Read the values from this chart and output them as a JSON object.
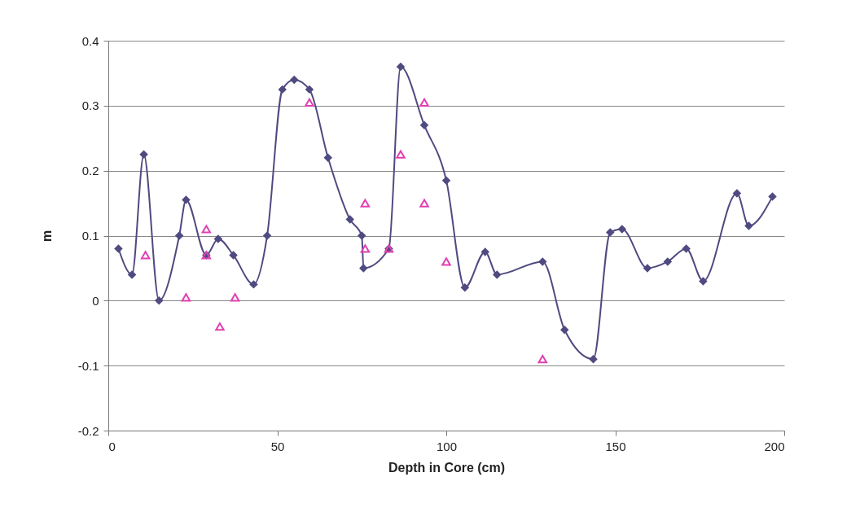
{
  "chart_data": {
    "type": "line",
    "xlabel": "Depth in Core (cm)",
    "ylabel": "m",
    "xlim": [
      0,
      200
    ],
    "xticks": [
      0,
      50,
      100,
      150,
      200
    ],
    "ylim": [
      -0.2,
      0.4
    ],
    "yticks": [
      -0.2,
      -0.1,
      0,
      0.1,
      0.2,
      0.3,
      0.4
    ],
    "grid": "y",
    "legend": false,
    "line_style": "solid",
    "series": [
      {
        "type": "line",
        "marker": "diamond",
        "color": "#4f4a80",
        "x": [
          3,
          7,
          10.5,
          15,
          21,
          23,
          29,
          32.5,
          37,
          43,
          47,
          51.5,
          55,
          59.5,
          65,
          71.5,
          75,
          75.5,
          83,
          86.5,
          93.5,
          100,
          105.5,
          111.5,
          115,
          128.5,
          135,
          143.5,
          148.5,
          152,
          159.5,
          165.5,
          171,
          176,
          186,
          189.5,
          196.5
        ],
        "values": [
          0.08,
          0.04,
          0.225,
          0,
          0.1,
          0.155,
          0.07,
          0.095,
          0.07,
          0.025,
          0.1,
          0.325,
          0.34,
          0.325,
          0.22,
          0.125,
          0.1,
          0.05,
          0.08,
          0.36,
          0.27,
          0.185,
          0.02,
          0.075,
          0.04,
          0.06,
          -0.045,
          -0.09,
          0.105,
          0.11,
          0.05,
          0.06,
          0.08,
          0.03,
          0.165,
          0.115,
          0.16
        ]
      },
      {
        "type": "scatter",
        "marker": "triangle",
        "color": "#e040b0",
        "x": [
          11,
          23,
          29,
          29,
          33,
          37.5,
          59.5,
          76,
          76,
          83,
          86.5,
          93.5,
          93.5,
          100,
          128.5
        ],
        "values": [
          0.07,
          0.005,
          0.11,
          0.07,
          -0.04,
          0.005,
          0.305,
          0.15,
          0.08,
          0.08,
          0.225,
          0.305,
          0.15,
          0.06,
          -0.09
        ]
      }
    ]
  }
}
